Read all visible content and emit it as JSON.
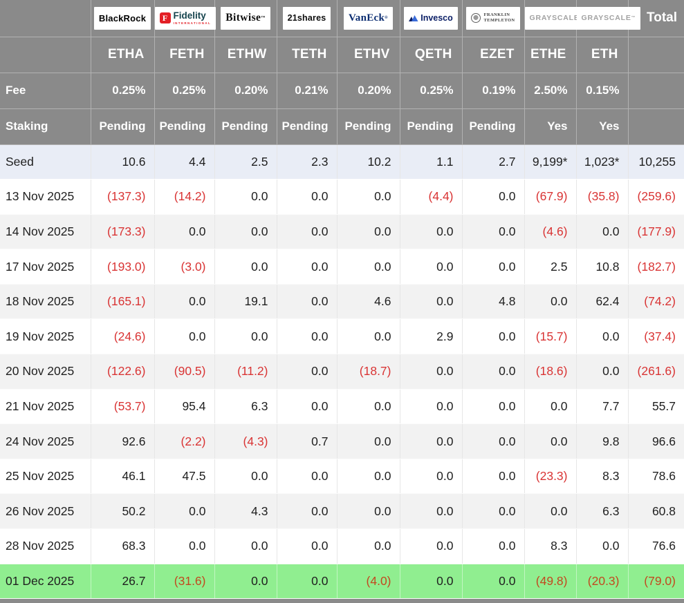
{
  "colors": {
    "header_bg": "#8a8a8a",
    "seed_row_bg": "#e9edf6",
    "alt_row_bg": "#f2f2f2",
    "green_row_bg": "#90ee90",
    "negative_text": "#d93434",
    "negative_text_on_green": "#c2491f",
    "fidelity_red": "#e31f26",
    "vaneck_navy": "#0b2d71",
    "invesco_navy": "#0b1f66"
  },
  "table": {
    "total_label": "Total",
    "fee_label": "Fee",
    "staking_label": "Staking",
    "providers": [
      {
        "name": "BlackRock",
        "logo": {
          "text": "BlackRock"
        }
      },
      {
        "name": "Fidelity International",
        "logo": {
          "badge": "F",
          "text": "Fidelity",
          "subtext": "INTERNATIONAL"
        }
      },
      {
        "name": "Bitwise",
        "logo": {
          "text": "Bitwise"
        }
      },
      {
        "name": "21shares",
        "logo": {
          "text": "21shares"
        }
      },
      {
        "name": "VanEck",
        "logo": {
          "text": "VanEck"
        }
      },
      {
        "name": "Invesco",
        "logo": {
          "text": "Invesco"
        }
      },
      {
        "name": "Franklin Templeton",
        "logo": {
          "line1": "FRANKLIN",
          "line2": "TEMPLETON"
        }
      },
      {
        "name": "Grayscale",
        "logo": {
          "text": "GRAYSCALE"
        }
      },
      {
        "name": "Grayscale",
        "logo": {
          "text": "GRAYSCALE"
        }
      }
    ]
  },
  "chart_data": {
    "type": "table",
    "columns": [
      "ETHA",
      "FETH",
      "ETHW",
      "TETH",
      "ETHV",
      "QETH",
      "EZET",
      "ETHE",
      "ETH"
    ],
    "fees": [
      "0.25%",
      "0.25%",
      "0.20%",
      "0.21%",
      "0.20%",
      "0.25%",
      "0.19%",
      "2.50%",
      "0.15%"
    ],
    "staking": [
      "Pending",
      "Pending",
      "Pending",
      "Pending",
      "Pending",
      "Pending",
      "Pending",
      "Yes",
      "Yes"
    ],
    "rows": [
      {
        "label": "Seed",
        "highlight": "seed",
        "values": [
          "10.6",
          "4.4",
          "2.5",
          "2.3",
          "10.2",
          "1.1",
          "2.7",
          "9,199*",
          "1,023*",
          "10,255"
        ]
      },
      {
        "label": "13 Nov 2025",
        "values": [
          "(137.3)",
          "(14.2)",
          "0.0",
          "0.0",
          "0.0",
          "(4.4)",
          "0.0",
          "(67.9)",
          "(35.8)",
          "(259.6)"
        ]
      },
      {
        "label": "14 Nov 2025",
        "values": [
          "(173.3)",
          "0.0",
          "0.0",
          "0.0",
          "0.0",
          "0.0",
          "0.0",
          "(4.6)",
          "0.0",
          "(177.9)"
        ]
      },
      {
        "label": "17 Nov 2025",
        "values": [
          "(193.0)",
          "(3.0)",
          "0.0",
          "0.0",
          "0.0",
          "0.0",
          "0.0",
          "2.5",
          "10.8",
          "(182.7)"
        ]
      },
      {
        "label": "18 Nov 2025",
        "values": [
          "(165.1)",
          "0.0",
          "19.1",
          "0.0",
          "4.6",
          "0.0",
          "4.8",
          "0.0",
          "62.4",
          "(74.2)"
        ]
      },
      {
        "label": "19 Nov 2025",
        "values": [
          "(24.6)",
          "0.0",
          "0.0",
          "0.0",
          "0.0",
          "2.9",
          "0.0",
          "(15.7)",
          "0.0",
          "(37.4)"
        ]
      },
      {
        "label": "20 Nov 2025",
        "values": [
          "(122.6)",
          "(90.5)",
          "(11.2)",
          "0.0",
          "(18.7)",
          "0.0",
          "0.0",
          "(18.6)",
          "0.0",
          "(261.6)"
        ]
      },
      {
        "label": "21 Nov 2025",
        "values": [
          "(53.7)",
          "95.4",
          "6.3",
          "0.0",
          "0.0",
          "0.0",
          "0.0",
          "0.0",
          "7.7",
          "55.7"
        ]
      },
      {
        "label": "24 Nov 2025",
        "values": [
          "92.6",
          "(2.2)",
          "(4.3)",
          "0.7",
          "0.0",
          "0.0",
          "0.0",
          "0.0",
          "9.8",
          "96.6"
        ]
      },
      {
        "label": "25 Nov 2025",
        "values": [
          "46.1",
          "47.5",
          "0.0",
          "0.0",
          "0.0",
          "0.0",
          "0.0",
          "(23.3)",
          "8.3",
          "78.6"
        ]
      },
      {
        "label": "26 Nov 2025",
        "values": [
          "50.2",
          "0.0",
          "4.3",
          "0.0",
          "0.0",
          "0.0",
          "0.0",
          "0.0",
          "6.3",
          "60.8"
        ]
      },
      {
        "label": "28 Nov 2025",
        "values": [
          "68.3",
          "0.0",
          "0.0",
          "0.0",
          "0.0",
          "0.0",
          "0.0",
          "8.3",
          "0.0",
          "76.6"
        ]
      },
      {
        "label": "01 Dec 2025",
        "highlight": "green",
        "values": [
          "26.7",
          "(31.6)",
          "0.0",
          "0.0",
          "(4.0)",
          "0.0",
          "0.0",
          "(49.8)",
          "(20.3)",
          "(79.0)"
        ]
      }
    ]
  }
}
